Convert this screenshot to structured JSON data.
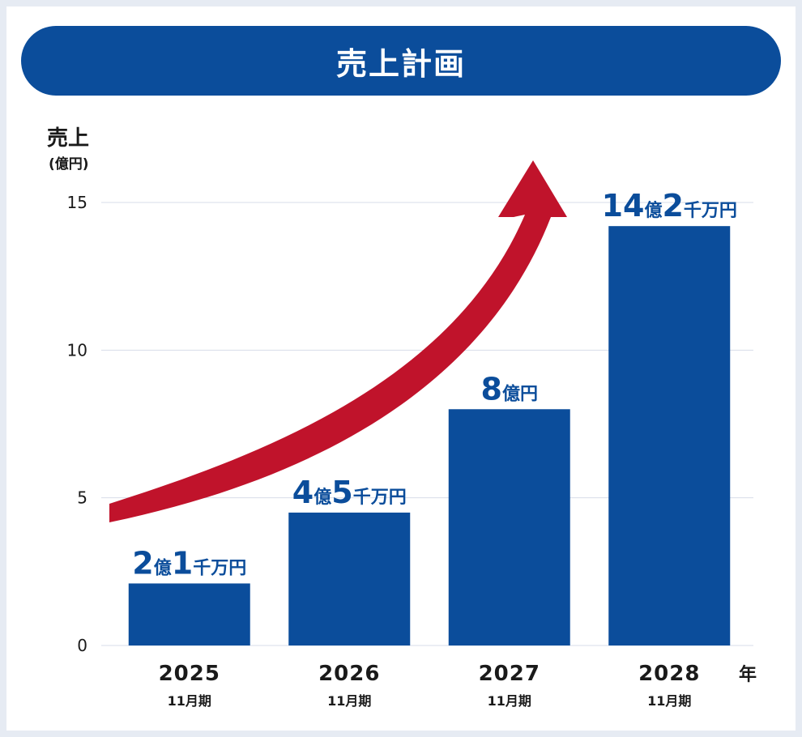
{
  "header": {
    "title": "売上計画"
  },
  "chart_data": {
    "type": "bar",
    "title": "売上計画",
    "ylabel": "売上",
    "yunit": "(億円)",
    "xunit": "年",
    "ylim": [
      0,
      15
    ],
    "yticks": [
      0,
      5,
      10,
      15
    ],
    "grid": true,
    "categories": [
      "2025",
      "2026",
      "2027",
      "2028"
    ],
    "sublabels": [
      "11月期",
      "11月期",
      "11月期",
      "11月期"
    ],
    "values": [
      2.1,
      4.5,
      8,
      14.2
    ],
    "value_labels": [
      [
        {
          "t": "2",
          "big": true
        },
        {
          "t": "億",
          "big": false
        },
        {
          "t": "1",
          "big": true
        },
        {
          "t": "千万円",
          "big": false
        }
      ],
      [
        {
          "t": "4",
          "big": true
        },
        {
          "t": "億",
          "big": false
        },
        {
          "t": "5",
          "big": true
        },
        {
          "t": "千万円",
          "big": false
        }
      ],
      [
        {
          "t": "8",
          "big": true
        },
        {
          "t": "億円",
          "big": false
        }
      ],
      [
        {
          "t": "14",
          "big": true
        },
        {
          "t": "億",
          "big": false
        },
        {
          "t": "2",
          "big": true
        },
        {
          "t": "千万円",
          "big": false
        }
      ]
    ],
    "colors": {
      "bar": "#0b4d9b",
      "arrow": "#c0132b",
      "grid": "#d7dde8",
      "label": "#0b4d9b"
    }
  }
}
